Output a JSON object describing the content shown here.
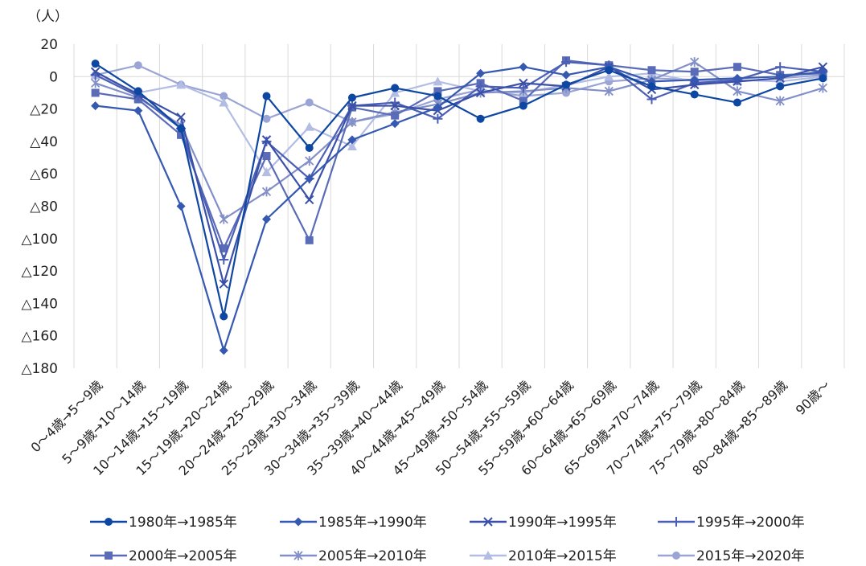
{
  "chart_data": {
    "type": "line",
    "unit_label": "（人）",
    "ylim": [
      -180,
      20
    ],
    "yticks": [
      {
        "value": 20,
        "label": "20"
      },
      {
        "value": 0,
        "label": "0"
      },
      {
        "value": -20,
        "label": "△20"
      },
      {
        "value": -40,
        "label": "△40"
      },
      {
        "value": -60,
        "label": "△60"
      },
      {
        "value": -80,
        "label": "△80"
      },
      {
        "value": -100,
        "label": "△100"
      },
      {
        "value": -120,
        "label": "△120"
      },
      {
        "value": -140,
        "label": "△140"
      },
      {
        "value": -160,
        "label": "△160"
      },
      {
        "value": -180,
        "label": "△180"
      }
    ],
    "grid": "vertical",
    "legend_position": "bottom",
    "categories": [
      "0～4歳→5～9歳",
      "5～9歳→10～14歳",
      "10～14歳→15～19歳",
      "15～19歳→20～24歳",
      "20～24歳→25～29歳",
      "25～29歳→30～34歳",
      "30～34歳→35～39歳",
      "35～39歳→40～44歳",
      "40～44歳→45～49歳",
      "45～49歳→50～54歳",
      "50～54歳→55～59歳",
      "55～59歳→60～64歳",
      "60～64歳→65～69歳",
      "65～69歳→70～74歳",
      "70～74歳→75～79歳",
      "75～79歳→80～84歳",
      "80～84歳→85～89歳",
      "90歳～"
    ],
    "series": [
      {
        "name": "1980年→1985年",
        "marker": "circle",
        "color": "#0d47a1",
        "values": [
          8,
          -9,
          -32,
          -148,
          -12,
          -44,
          -13,
          -7,
          -12,
          -26,
          -18,
          -5,
          4,
          -6,
          -11,
          -16,
          -6,
          -1
        ]
      },
      {
        "name": "1985年→1990年",
        "marker": "diamond",
        "color": "#3558b0",
        "values": [
          -18,
          -21,
          -80,
          -169,
          -88,
          -63,
          -39,
          -29,
          -19,
          2,
          6,
          1,
          6,
          -3,
          -2,
          -1,
          0,
          3
        ]
      },
      {
        "name": "1990年→1995年",
        "marker": "x",
        "color": "#3a4fa8",
        "values": [
          3,
          -11,
          -25,
          -128,
          -39,
          -76,
          -18,
          -18,
          -21,
          -10,
          -4,
          -6,
          6,
          -8,
          -5,
          -3,
          -1,
          6
        ]
      },
      {
        "name": "1995年→2000年",
        "marker": "plus",
        "color": "#4a5fb5",
        "values": [
          1,
          -12,
          -32,
          -113,
          -40,
          -63,
          -18,
          -16,
          -26,
          -6,
          -7,
          9,
          7,
          -14,
          -4,
          -2,
          6,
          3
        ]
      },
      {
        "name": "2000年→2005年",
        "marker": "square",
        "color": "#5a6cb8",
        "values": [
          -10,
          -14,
          -36,
          -106,
          -49,
          -101,
          -19,
          -24,
          -9,
          -4,
          -15,
          10,
          7,
          4,
          3,
          6,
          1,
          2
        ]
      },
      {
        "name": "2005年→2010年",
        "marker": "star",
        "color": "#8390c8",
        "values": [
          -4,
          -13,
          -30,
          -88,
          -71,
          -52,
          -28,
          -22,
          -17,
          -10,
          -9,
          -7,
          -9,
          -2,
          9,
          -9,
          -15,
          -7
        ]
      },
      {
        "name": "2010年→2015年",
        "marker": "triangle",
        "color": "#b3bde3",
        "values": [
          1,
          -10,
          -5,
          -16,
          -59,
          -31,
          -43,
          -10,
          -3,
          -9,
          -10,
          -5,
          0,
          2,
          -3,
          -2,
          -3,
          0
        ]
      },
      {
        "name": "2015年→2020年",
        "marker": "circle",
        "color": "#9aa5d6",
        "values": [
          1,
          7,
          -5,
          -12,
          -26,
          -16,
          -28,
          -23,
          -14,
          -8,
          -12,
          -10,
          -3,
          -1,
          -2,
          -3,
          -1,
          1
        ]
      }
    ]
  }
}
